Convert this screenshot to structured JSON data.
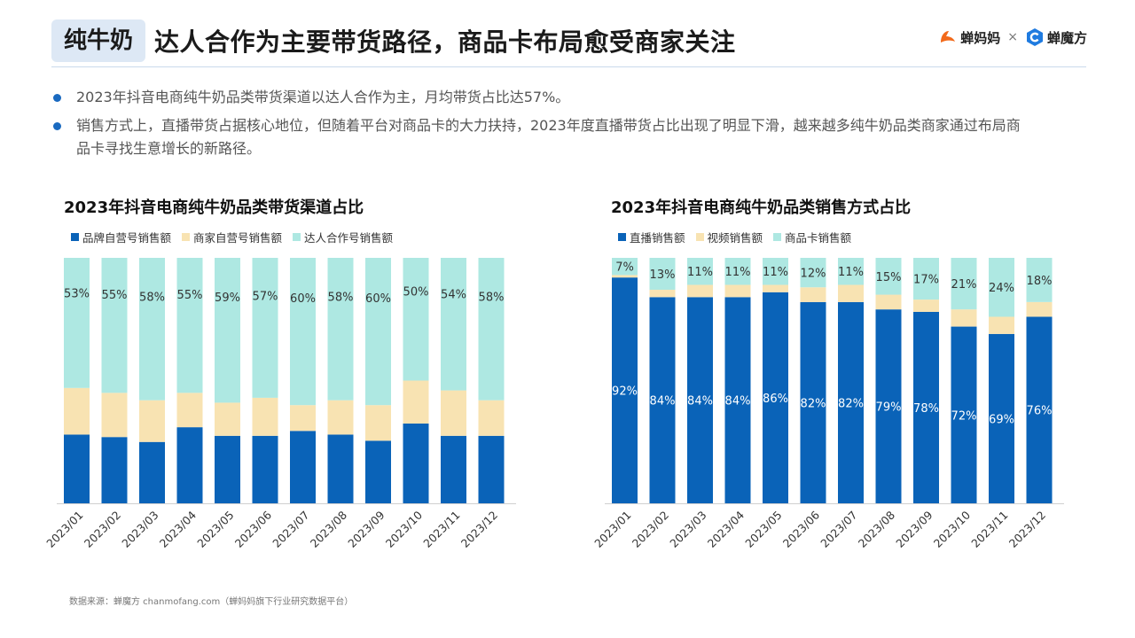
{
  "header": {
    "tag": "纯牛奶",
    "title": "达人合作为主要带货路径，商品卡布局愈受商家关注",
    "logo_left": "蝉妈妈",
    "logo_sep": "×",
    "logo_right": "蝉魔方"
  },
  "bullets": [
    "2023年抖音电商纯牛奶品类带货渠道以达人合作为主，月均带货占比达57%。",
    "销售方式上，直播带货占据核心地位，但随着平台对商品卡的大力扶持，2023年度直播带货占比出现了明显下滑，越来越多纯牛奶品类商家通过布局商品卡寻找生意增长的新路径。"
  ],
  "source": "数据来源：蝉魔方 chanmofang.com（蝉妈妈旗下行业研究数据平台）",
  "colors": {
    "blue": "#0a63b8",
    "yellow": "#f8e3b2",
    "teal": "#aee8e2",
    "accent": "#1a6ac0"
  },
  "chart_data": [
    {
      "type": "bar",
      "stacked": true,
      "title": "2023年抖音电商纯牛奶品类带货渠道占比",
      "categories": [
        "2023/01",
        "2023/02",
        "2023/03",
        "2023/04",
        "2023/05",
        "2023/06",
        "2023/07",
        "2023/08",
        "2023/09",
        "2023/10",
        "2023/11",
        "2023/12"
      ],
      "series": [
        {
          "name": "品牌自营号销售额",
          "values": [
            28,
            27,
            25,
            31,
            27.5,
            27.5,
            29.5,
            28,
            25.5,
            32.5,
            27.5,
            27.5
          ]
        },
        {
          "name": "商家自营号销售额",
          "values": [
            19,
            18,
            17,
            14,
            13.5,
            15.5,
            10.5,
            14,
            14.5,
            17.5,
            18.5,
            14.5
          ]
        },
        {
          "name": "达人合作号销售额",
          "values": [
            53,
            55,
            58,
            55,
            59,
            57,
            60,
            58,
            60,
            50,
            54,
            58
          ]
        }
      ],
      "labels": [
        "53%",
        "55%",
        "58%",
        "55%",
        "59%",
        "57%",
        "60%",
        "58%",
        "60%",
        "50%",
        "54%",
        "58%"
      ],
      "label_series": 2,
      "ylim": [
        0,
        100
      ],
      "legend": "top-left"
    },
    {
      "type": "bar",
      "stacked": true,
      "title": "2023年抖音电商纯牛奶品类销售方式占比",
      "categories": [
        "2023/01",
        "2023/02",
        "2023/03",
        "2023/04",
        "2023/05",
        "2023/06",
        "2023/07",
        "2023/08",
        "2023/09",
        "2023/10",
        "2023/11",
        "2023/12"
      ],
      "series": [
        {
          "name": "直播销售额",
          "values": [
            92,
            84,
            84,
            84,
            86,
            82,
            82,
            79,
            78,
            72,
            69,
            76
          ]
        },
        {
          "name": "视频销售额",
          "values": [
            1,
            3,
            5,
            5,
            3,
            6,
            7,
            6,
            5,
            7,
            7,
            6
          ]
        },
        {
          "name": "商品卡销售额",
          "values": [
            7,
            13,
            11,
            11,
            11,
            12,
            11,
            15,
            17,
            21,
            24,
            18
          ]
        }
      ],
      "labels_bottom": [
        "92%",
        "84%",
        "84%",
        "84%",
        "86%",
        "82%",
        "82%",
        "79%",
        "78%",
        "72%",
        "69%",
        "76%"
      ],
      "labels_top": [
        "7%",
        "13%",
        "11%",
        "11%",
        "11%",
        "12%",
        "11%",
        "15%",
        "17%",
        "21%",
        "24%",
        "18%"
      ],
      "ylim": [
        0,
        100
      ],
      "legend": "top-left"
    }
  ]
}
